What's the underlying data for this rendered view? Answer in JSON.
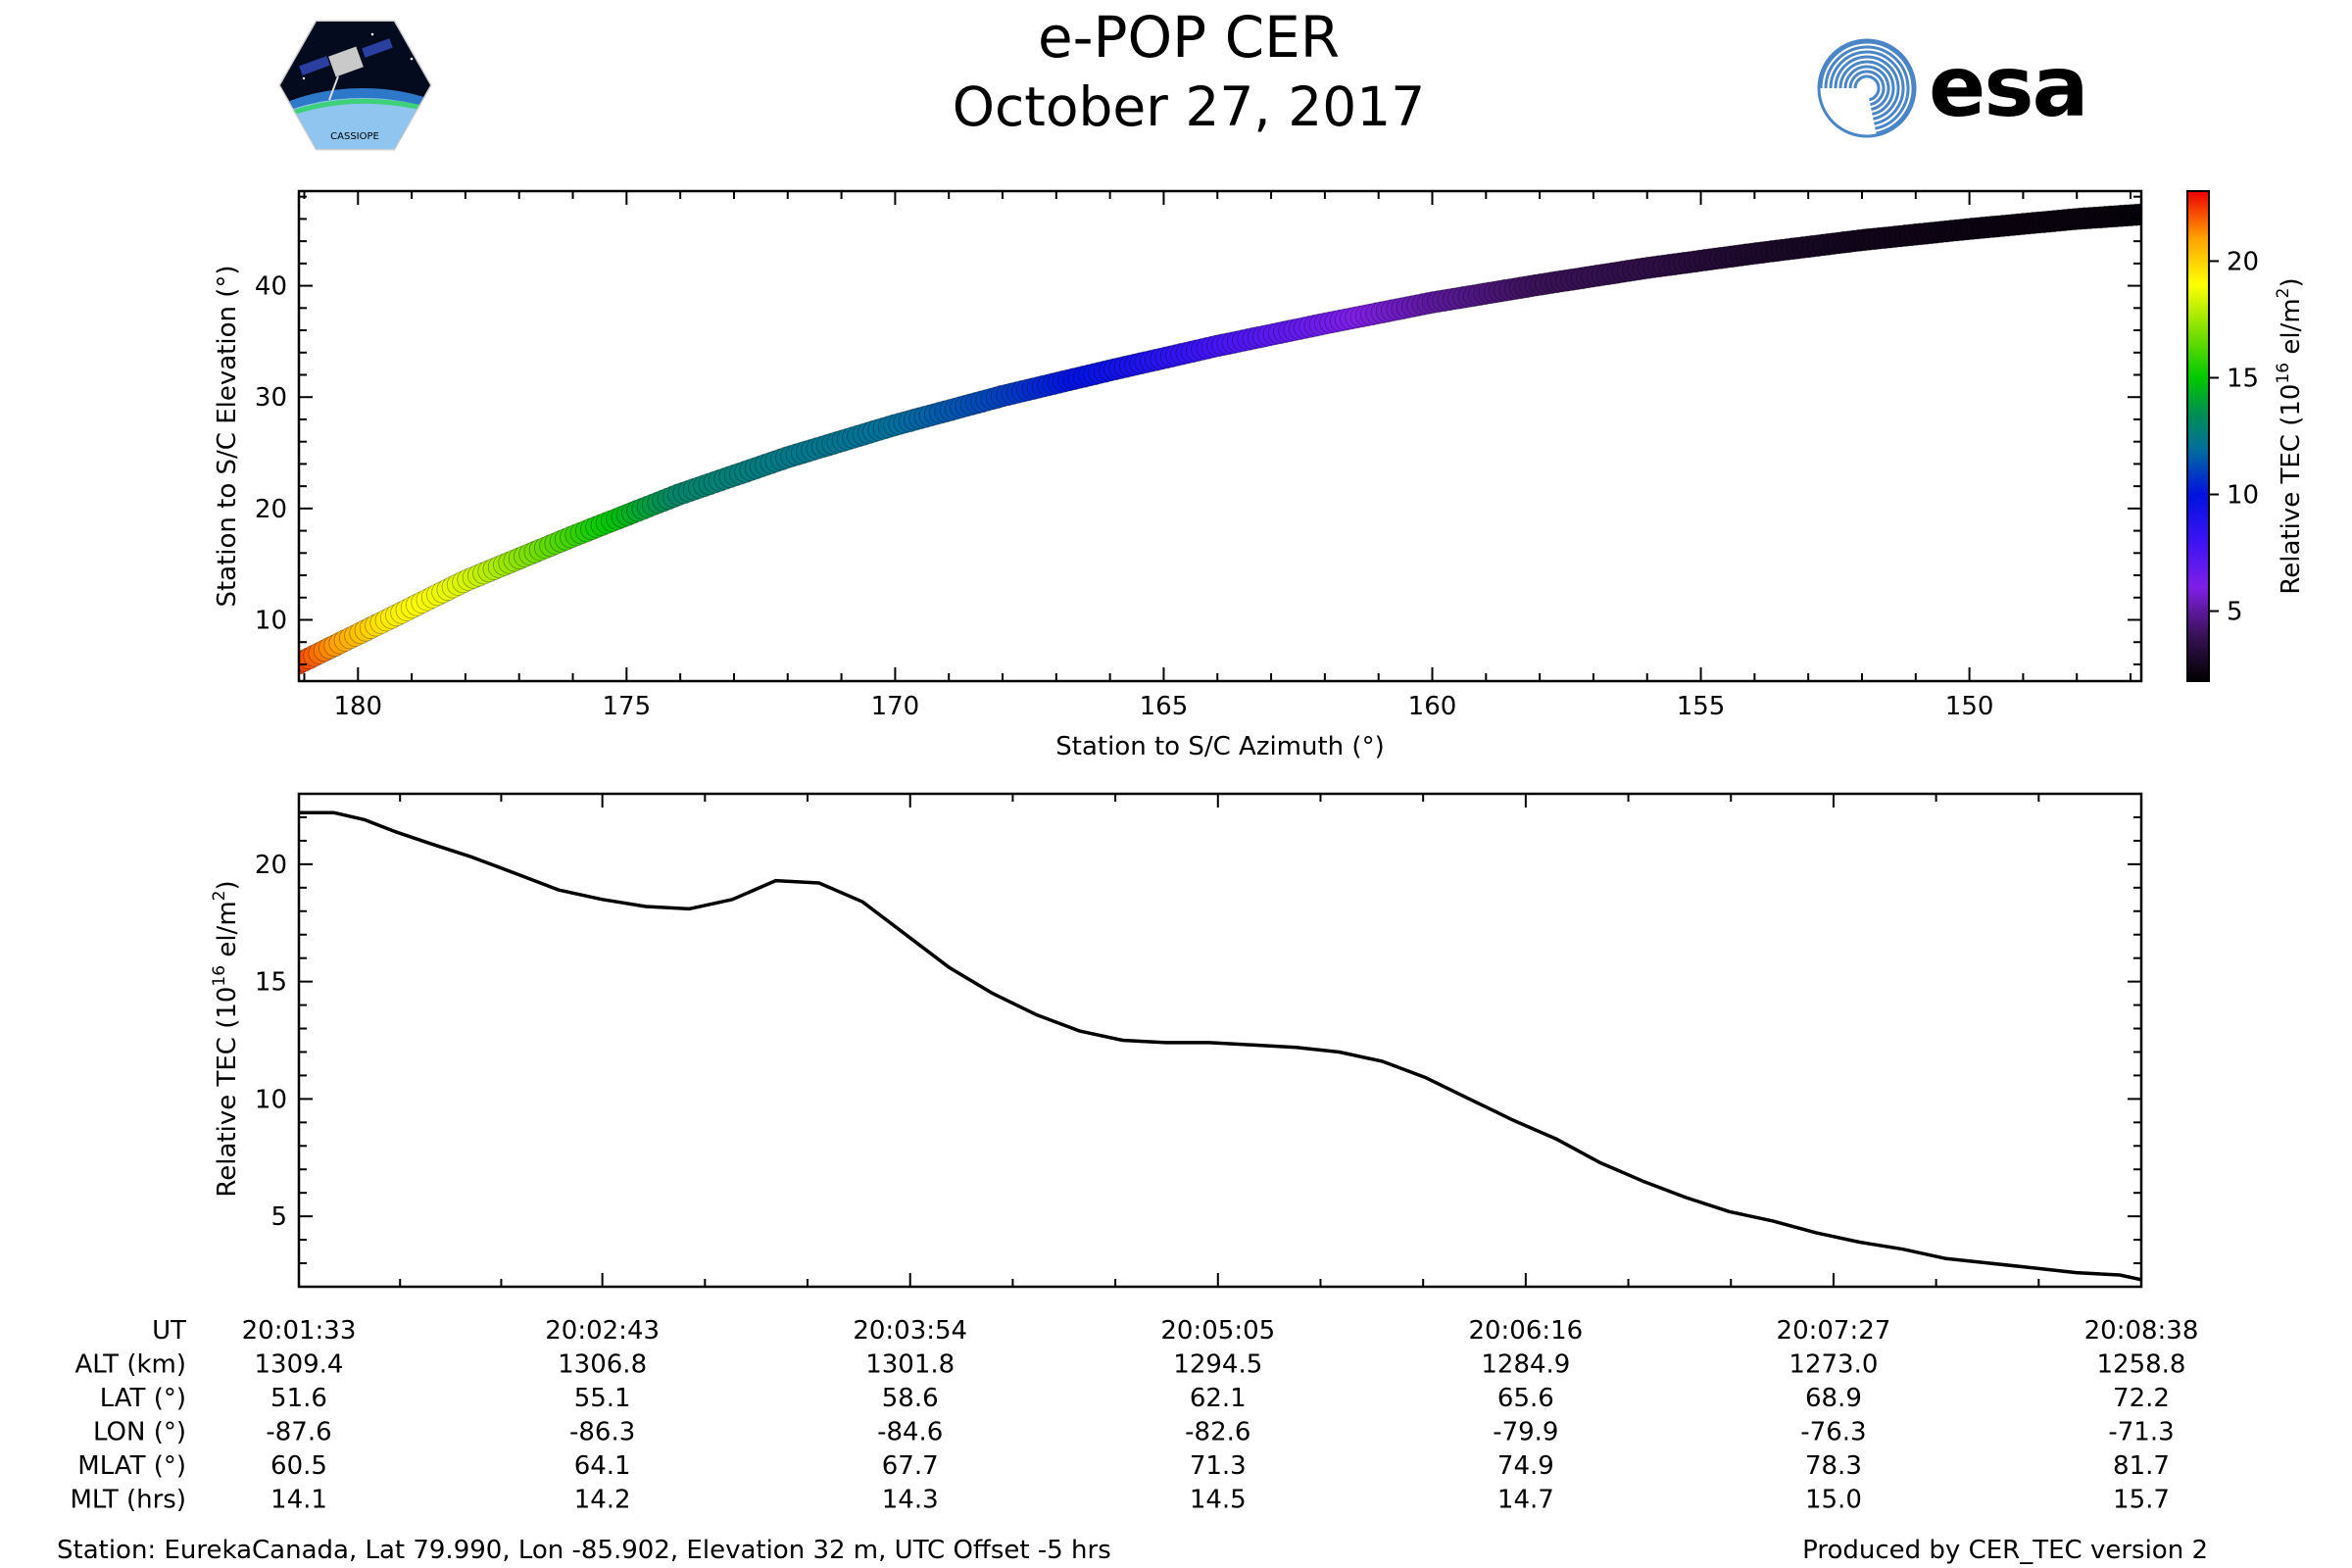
{
  "header": {
    "title": "e-POP CER",
    "subtitle": "October 27, 2017",
    "left_logo": {
      "name": "CASSIOPE mission logo",
      "text": "CASSIOPE"
    },
    "right_logo": {
      "name": "ESA logo",
      "text": "esa",
      "color": "#003a80"
    }
  },
  "chart_data": [
    {
      "type": "scatter",
      "description_text_only": "",
      "xlabel": "Station to S/C Azimuth (°)",
      "ylabel": "Station to S/C Elevation (°)",
      "xlim": [
        181.1,
        146.8
      ],
      "ylim": [
        4.5,
        48.5
      ],
      "x_ticks": [
        180,
        175,
        170,
        165,
        160,
        155,
        150
      ],
      "y_ticks": [
        10,
        20,
        30,
        40
      ],
      "grid": false,
      "points": {
        "azimuth": [
          181.1,
          179.5,
          178.0,
          176.0,
          174.0,
          172.0,
          170.0,
          168.0,
          166.0,
          164.0,
          162.0,
          160.0,
          158.0,
          156.0,
          154.0,
          152.0,
          150.0,
          148.0,
          146.8
        ],
        "elevation": [
          6.1,
          9.9,
          13.5,
          17.5,
          21.3,
          24.6,
          27.5,
          30.1,
          32.4,
          34.6,
          36.6,
          38.5,
          40.1,
          41.6,
          42.9,
          44.1,
          45.1,
          46.0,
          46.4
        ],
        "relative_tec": [
          22.3,
          19.5,
          18.4,
          16.0,
          13.0,
          12.4,
          12.0,
          11.0,
          9.5,
          7.8,
          6.5,
          5.0,
          4.0,
          3.6,
          3.0,
          2.6,
          2.4,
          2.3,
          2.2
        ]
      },
      "colorbar": {
        "label": "Relative TEC (10",
        "label_exponent": "16",
        "label_unit": " el/m",
        "label_unit_exponent": "2",
        "label_close": ")",
        "range": [
          2,
          23
        ],
        "ticks": [
          5,
          10,
          15,
          20
        ],
        "colormap": "nipy_spectral-like",
        "stops": [
          {
            "value": 2,
            "color": "#000000"
          },
          {
            "value": 4,
            "color": "#3a1258"
          },
          {
            "value": 6,
            "color": "#7f1fe6"
          },
          {
            "value": 8,
            "color": "#3c13f5"
          },
          {
            "value": 10,
            "color": "#0012e0"
          },
          {
            "value": 12,
            "color": "#00709b"
          },
          {
            "value": 13.5,
            "color": "#009050"
          },
          {
            "value": 15,
            "color": "#00c800"
          },
          {
            "value": 17,
            "color": "#80e000"
          },
          {
            "value": 19,
            "color": "#ffff00"
          },
          {
            "value": 21,
            "color": "#ffa000"
          },
          {
            "value": 23,
            "color": "#ee0000"
          }
        ]
      }
    },
    {
      "type": "line",
      "xlabel": "",
      "ylabel": "Relative TEC (10",
      "ylabel_exponent": "16",
      "ylabel_unit": " el/m",
      "ylabel_unit_exponent": "2",
      "ylabel_close": ")",
      "xlim": [
        0,
        425
      ],
      "ylim": [
        2,
        23
      ],
      "y_ticks": [
        5,
        10,
        15,
        20
      ],
      "grid": false,
      "line_color": "#000000",
      "series": [
        {
          "x_seconds": [
            0,
            8,
            15,
            22,
            30,
            40,
            50,
            60,
            70,
            80,
            90,
            100,
            110,
            120,
            130,
            140,
            150,
            160,
            170,
            180,
            190,
            200,
            210,
            220,
            230,
            240,
            250,
            260,
            270,
            280,
            290,
            300,
            310,
            320,
            330,
            340,
            350,
            360,
            370,
            380,
            390,
            400,
            410,
            420,
            425
          ],
          "values": [
            22.2,
            22.2,
            21.9,
            21.4,
            20.9,
            20.3,
            19.6,
            18.9,
            18.5,
            18.2,
            18.1,
            18.5,
            19.3,
            19.2,
            18.4,
            17.0,
            15.6,
            14.5,
            13.6,
            12.9,
            12.5,
            12.4,
            12.4,
            12.3,
            12.2,
            12.0,
            11.6,
            10.9,
            10.0,
            9.1,
            8.3,
            7.3,
            6.5,
            5.8,
            5.2,
            4.8,
            4.3,
            3.9,
            3.6,
            3.2,
            3.0,
            2.8,
            2.6,
            2.5,
            2.3
          ]
        }
      ],
      "x_tick_seconds": [
        0,
        70,
        141,
        212,
        283,
        354,
        425
      ],
      "info_table": {
        "row_labels": [
          "UT",
          "ALT (km)",
          "LAT (°)",
          "LON (°)",
          "MLAT (°)",
          "MLT (hrs)"
        ],
        "columns": [
          [
            "20:01:33",
            "1309.4",
            "51.6",
            "-87.6",
            "60.5",
            "14.1"
          ],
          [
            "20:02:43",
            "1306.8",
            "55.1",
            "-86.3",
            "64.1",
            "14.2"
          ],
          [
            "20:03:54",
            "1301.8",
            "58.6",
            "-84.6",
            "67.7",
            "14.3"
          ],
          [
            "20:05:05",
            "1294.5",
            "62.1",
            "-82.6",
            "71.3",
            "14.5"
          ],
          [
            "20:06:16",
            "1284.9",
            "65.6",
            "-79.9",
            "74.9",
            "14.7"
          ],
          [
            "20:07:27",
            "1273.0",
            "68.9",
            "-76.3",
            "78.3",
            "15.0"
          ],
          [
            "20:08:38",
            "1258.8",
            "72.2",
            "-71.3",
            "81.7",
            "15.7"
          ]
        ]
      }
    }
  ],
  "footer": {
    "station": "Station: EurekaCanada, Lat 79.990, Lon -85.902, Elevation 32 m, UTC Offset -5 hrs",
    "producer": "Produced by CER_TEC version 2"
  }
}
